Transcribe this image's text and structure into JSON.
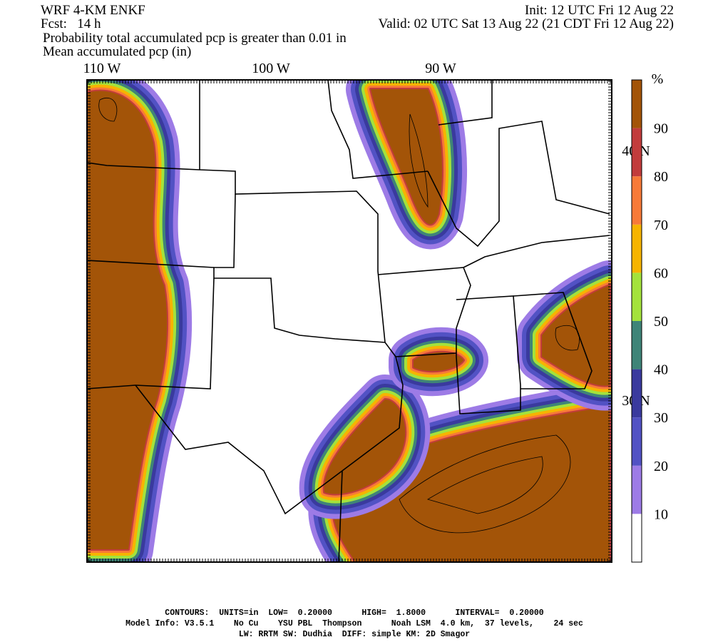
{
  "header": {
    "model": "WRF 4-KM ENKF",
    "init": "Init: 12 UTC Fri 12 Aug 22",
    "forecast": "Fcst:   14 h",
    "valid": "Valid: 02 UTC Sat 13 Aug 22 (21 CDT Fri 12 Aug 22)",
    "fill_field": "Probability total accumulated pcp is greater than 0.01 in",
    "contour_field": "Mean accumulated pcp (in)"
  },
  "map": {
    "longitude_labels": [
      "110 W",
      "100 W",
      "90 W"
    ],
    "latitude_labels": [
      "40 N",
      "30 N"
    ]
  },
  "colorbar": {
    "unit": "%",
    "labels": [
      10,
      20,
      30,
      40,
      50,
      60,
      70,
      80,
      90
    ],
    "colors": [
      "#ffffff",
      "#9d7be6",
      "#5252c4",
      "#3a3a9e",
      "#3f8478",
      "#a4e23c",
      "#f6b400",
      "#f77a38",
      "#c23c3c",
      "#a35408"
    ]
  },
  "footer": [
    "CONTOURS:  UNITS=in  LOW=  0.20000      HIGH=  1.8000      INTERVAL=  0.20000",
    "Model Info: V3.5.1    No Cu    YSU PBL  Thompson      Noah LSM  4.0 km,  37 levels,    24 sec",
    "LW: RRTM SW: Dudhia  DIFF: simple KM: 2D Smagor"
  ]
}
